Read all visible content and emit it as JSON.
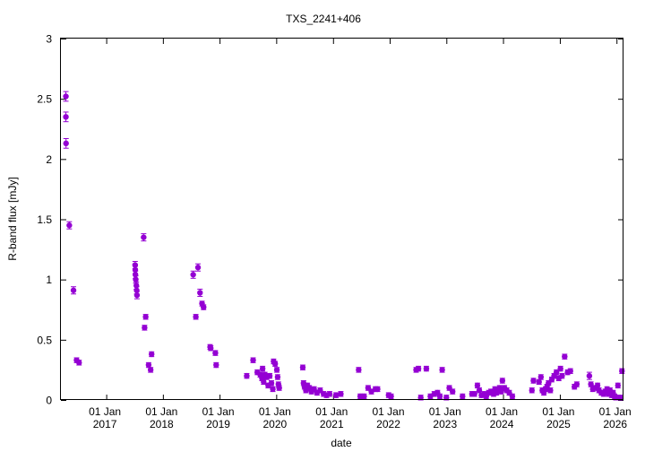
{
  "chart_data": {
    "type": "scatter",
    "title": "TXS_2241+406",
    "xlabel": "date",
    "ylabel": "R-band flux [mJy]",
    "ylim": [
      0,
      3
    ],
    "yticks": [
      "0",
      "0.5",
      "1",
      "1.5",
      "2",
      "2.5",
      "3"
    ],
    "xlim": [
      "2016-03-15",
      "2026-02-15"
    ],
    "xticks": [
      {
        "date": "2017-01-01",
        "line1": "01 Jan",
        "line2": "2017"
      },
      {
        "date": "2018-01-01",
        "line1": "01 Jan",
        "line2": "2018"
      },
      {
        "date": "2019-01-01",
        "line1": "01 Jan",
        "line2": "2019"
      },
      {
        "date": "2020-01-01",
        "line1": "01 Jan",
        "line2": "2020"
      },
      {
        "date": "2021-01-01",
        "line1": "01 Jan",
        "line2": "2021"
      },
      {
        "date": "2022-01-01",
        "line1": "01 Jan",
        "line2": "2022"
      },
      {
        "date": "2023-01-01",
        "line1": "01 Jan",
        "line2": "2023"
      },
      {
        "date": "2024-01-01",
        "line1": "01 Jan",
        "line2": "2024"
      },
      {
        "date": "2025-01-01",
        "line1": "01 Jan",
        "line2": "2025"
      },
      {
        "date": "2026-01-01",
        "line1": "01 Jan",
        "line2": "2026"
      }
    ],
    "grid": false,
    "marker_color": "#9400d3",
    "series": [
      {
        "points": [
          [
            "2016-04-16",
            2.52,
            0.04
          ],
          [
            "2016-04-16",
            2.35,
            0.04
          ],
          [
            "2016-04-17",
            2.13,
            0.04
          ],
          [
            "2016-05-08",
            1.45,
            0.03
          ],
          [
            "2016-06-04",
            0.91,
            0.03
          ],
          [
            "2016-06-24",
            0.33,
            0.02
          ],
          [
            "2016-07-10",
            0.31,
            0.02
          ],
          [
            "2017-07-06",
            1.12,
            0.03
          ],
          [
            "2017-07-07",
            1.08,
            0.03
          ],
          [
            "2017-07-08",
            1.04,
            0.03
          ],
          [
            "2017-07-10",
            1.0,
            0.03
          ],
          [
            "2017-07-14",
            0.95,
            0.03
          ],
          [
            "2017-07-16",
            0.91,
            0.03
          ],
          [
            "2017-07-18",
            0.87,
            0.03
          ],
          [
            "2017-08-30",
            1.35,
            0.03
          ],
          [
            "2017-09-12",
            0.69,
            0.02
          ],
          [
            "2017-09-05",
            0.6,
            0.02
          ],
          [
            "2017-10-01",
            0.29,
            0.02
          ],
          [
            "2017-10-14",
            0.25,
            0.02
          ],
          [
            "2017-10-20",
            0.38,
            0.02
          ],
          [
            "2018-07-15",
            1.04,
            0.03
          ],
          [
            "2018-08-01",
            0.69,
            0.02
          ],
          [
            "2018-08-15",
            1.1,
            0.03
          ],
          [
            "2018-08-28",
            0.89,
            0.03
          ],
          [
            "2018-09-10",
            0.8,
            0.02
          ],
          [
            "2018-09-20",
            0.77,
            0.02
          ],
          [
            "2018-11-01",
            0.44,
            0.02
          ],
          [
            "2018-11-05",
            0.43,
            0.02
          ],
          [
            "2018-12-05",
            0.39,
            0.02
          ],
          [
            "2018-12-10",
            0.29,
            0.02
          ],
          [
            "2019-06-25",
            0.2,
            0.02
          ],
          [
            "2019-08-05",
            0.33,
            0.02
          ],
          [
            "2019-09-01",
            0.23,
            0.02
          ],
          [
            "2019-09-20",
            0.21,
            0.02
          ],
          [
            "2019-10-01",
            0.18,
            0.02
          ],
          [
            "2019-10-05",
            0.26,
            0.02
          ],
          [
            "2019-10-12",
            0.15,
            0.02
          ],
          [
            "2019-10-20",
            0.21,
            0.02
          ],
          [
            "2019-11-01",
            0.19,
            0.02
          ],
          [
            "2019-11-10",
            0.12,
            0.02
          ],
          [
            "2019-11-20",
            0.2,
            0.02
          ],
          [
            "2019-12-01",
            0.14,
            0.02
          ],
          [
            "2019-12-10",
            0.09,
            0.02
          ],
          [
            "2019-12-15",
            0.32,
            0.02
          ],
          [
            "2019-12-25",
            0.3,
            0.02
          ],
          [
            "2020-01-05",
            0.25,
            0.02
          ],
          [
            "2020-01-10",
            0.19,
            0.02
          ],
          [
            "2020-01-15",
            0.13,
            0.02
          ],
          [
            "2020-01-20",
            0.1,
            0.02
          ],
          [
            "2020-06-20",
            0.27,
            0.02
          ],
          [
            "2020-06-25",
            0.14,
            0.02
          ],
          [
            "2020-07-01",
            0.11,
            0.02
          ],
          [
            "2020-07-10",
            0.08,
            0.02
          ],
          [
            "2020-07-20",
            0.12,
            0.02
          ],
          [
            "2020-08-01",
            0.1,
            0.02
          ],
          [
            "2020-08-15",
            0.07,
            0.02
          ],
          [
            "2020-09-01",
            0.09,
            0.02
          ],
          [
            "2020-09-20",
            0.06,
            0.02
          ],
          [
            "2020-10-10",
            0.08,
            0.02
          ],
          [
            "2020-11-01",
            0.05,
            0.02
          ],
          [
            "2020-11-20",
            0.04,
            0.02
          ],
          [
            "2020-12-10",
            0.05,
            0.02
          ],
          [
            "2021-01-20",
            0.04,
            0.02
          ],
          [
            "2021-02-20",
            0.05,
            0.02
          ],
          [
            "2021-06-15",
            0.25,
            0.02
          ],
          [
            "2021-06-25",
            0.03,
            0.02
          ],
          [
            "2021-07-20",
            0.03,
            0.02
          ],
          [
            "2021-08-15",
            0.1,
            0.02
          ],
          [
            "2021-09-05",
            0.07,
            0.02
          ],
          [
            "2021-10-01",
            0.09,
            0.02
          ],
          [
            "2021-10-15",
            0.09,
            0.02
          ],
          [
            "2021-12-25",
            0.04,
            0.02
          ],
          [
            "2022-01-10",
            0.03,
            0.02
          ],
          [
            "2022-06-20",
            0.25,
            0.02
          ],
          [
            "2022-07-05",
            0.26,
            0.02
          ],
          [
            "2022-07-20",
            0.02,
            0.02
          ],
          [
            "2022-08-25",
            0.26,
            0.02
          ],
          [
            "2022-09-20",
            0.03,
            0.02
          ],
          [
            "2022-10-15",
            0.05,
            0.02
          ],
          [
            "2022-11-05",
            0.06,
            0.02
          ],
          [
            "2022-11-20",
            0.03,
            0.02
          ],
          [
            "2023-01-01",
            0.02,
            0.02
          ],
          [
            "2022-12-05",
            0.25,
            0.02
          ],
          [
            "2023-01-20",
            0.1,
            0.02
          ],
          [
            "2023-02-10",
            0.07,
            0.02
          ],
          [
            "2023-04-15",
            0.03,
            0.02
          ],
          [
            "2023-06-15",
            0.05,
            0.02
          ],
          [
            "2023-07-01",
            0.05,
            0.02
          ],
          [
            "2023-07-20",
            0.12,
            0.02
          ],
          [
            "2023-08-01",
            0.08,
            0.02
          ],
          [
            "2023-08-15",
            0.04,
            0.02
          ],
          [
            "2023-09-01",
            0.05,
            0.02
          ],
          [
            "2023-09-15",
            0.03,
            0.02
          ],
          [
            "2023-10-01",
            0.06,
            0.02
          ],
          [
            "2023-10-15",
            0.07,
            0.02
          ],
          [
            "2023-11-01",
            0.05,
            0.02
          ],
          [
            "2023-11-10",
            0.09,
            0.02
          ],
          [
            "2023-11-20",
            0.06,
            0.02
          ],
          [
            "2023-12-01",
            0.08,
            0.02
          ],
          [
            "2023-12-10",
            0.1,
            0.02
          ],
          [
            "2023-12-20",
            0.07,
            0.02
          ],
          [
            "2023-12-28",
            0.16,
            0.02
          ],
          [
            "2024-01-10",
            0.1,
            0.02
          ],
          [
            "2024-01-25",
            0.08,
            0.02
          ],
          [
            "2024-02-10",
            0.06,
            0.02
          ],
          [
            "2024-03-01",
            0.03,
            0.02
          ],
          [
            "2024-07-05",
            0.08,
            0.02
          ],
          [
            "2024-07-15",
            0.16,
            0.02
          ],
          [
            "2024-08-20",
            0.15,
            0.02
          ],
          [
            "2024-09-01",
            0.19,
            0.02
          ],
          [
            "2024-09-10",
            0.08,
            0.02
          ],
          [
            "2024-09-20",
            0.06,
            0.02
          ],
          [
            "2024-10-01",
            0.09,
            0.02
          ],
          [
            "2024-10-10",
            0.11,
            0.02
          ],
          [
            "2024-10-20",
            0.14,
            0.02
          ],
          [
            "2024-11-01",
            0.08,
            0.02
          ],
          [
            "2024-11-10",
            0.17,
            0.02
          ],
          [
            "2024-11-25",
            0.2,
            0.02
          ],
          [
            "2024-12-10",
            0.23,
            0.02
          ],
          [
            "2024-12-25",
            0.18,
            0.02
          ],
          [
            "2025-01-05",
            0.26,
            0.02
          ],
          [
            "2025-01-15",
            0.2,
            0.02
          ],
          [
            "2025-02-01",
            0.36,
            0.02
          ],
          [
            "2025-02-20",
            0.23,
            0.02
          ],
          [
            "2025-03-10",
            0.24,
            0.02
          ],
          [
            "2025-04-05",
            0.11,
            0.02
          ],
          [
            "2025-04-20",
            0.13,
            0.02
          ],
          [
            "2025-07-10",
            0.2,
            0.03
          ],
          [
            "2025-07-20",
            0.13,
            0.02
          ],
          [
            "2025-08-01",
            0.09,
            0.02
          ],
          [
            "2025-08-15",
            0.1,
            0.02
          ],
          [
            "2025-09-01",
            0.12,
            0.02
          ],
          [
            "2025-09-10",
            0.08,
            0.02
          ],
          [
            "2025-09-25",
            0.06,
            0.02
          ],
          [
            "2025-10-10",
            0.05,
            0.02
          ],
          [
            "2025-10-20",
            0.07,
            0.02
          ],
          [
            "2025-11-01",
            0.09,
            0.02
          ],
          [
            "2025-11-10",
            0.05,
            0.02
          ],
          [
            "2025-11-20",
            0.08,
            0.02
          ],
          [
            "2025-12-01",
            0.04,
            0.02
          ],
          [
            "2025-12-10",
            0.06,
            0.02
          ],
          [
            "2025-12-20",
            0.03,
            0.02
          ],
          [
            "2025-12-28",
            0.02,
            0.02
          ],
          [
            "2026-01-10",
            0.12,
            0.02
          ],
          [
            "2026-01-25",
            0.02,
            0.02
          ],
          [
            "2026-02-05",
            0.24,
            0.02
          ]
        ]
      }
    ]
  }
}
